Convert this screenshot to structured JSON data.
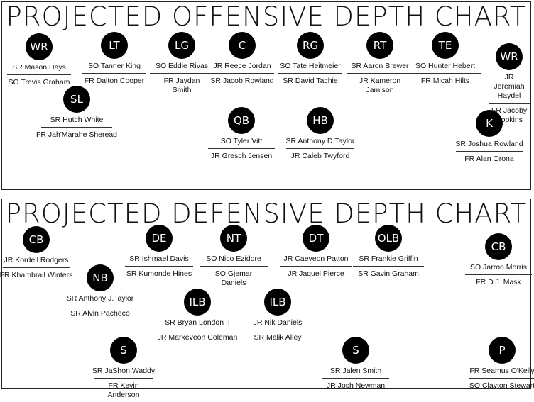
{
  "offense": {
    "title": "PROJECTED OFFENSIVE DEPTH CHART",
    "positions": [
      {
        "label": "WR",
        "first": "SR Mason Hays",
        "second": "SO Trevis Graham"
      },
      {
        "label": "LT",
        "first": "SO Tanner King",
        "second": "FR Dalton Cooper"
      },
      {
        "label": "LG",
        "first": "SO Eddie Rivas",
        "second": "FR Jaydan Smith"
      },
      {
        "label": "C",
        "first": "JR Reece Jordan",
        "second": "SR Jacob Rowland"
      },
      {
        "label": "RG",
        "first": "SO Tate Heitmeier",
        "second": "SR David Tachie"
      },
      {
        "label": "RT",
        "first": "SR Aaron Brewer",
        "second": "JR Kameron Jamison"
      },
      {
        "label": "TE",
        "first": "SO Hunter Hebert",
        "second": "FR Micah Hilts"
      },
      {
        "label": "WR",
        "first": "JR Jeremiah Haydel",
        "second": "FR Jacoby Hopkins"
      },
      {
        "label": "SL",
        "first": "SR Hutch White",
        "second": "FR Jah'Marahe Sheread"
      },
      {
        "label": "QB",
        "first": "SO Tyler Vitt",
        "second": "JR Gresch Jensen"
      },
      {
        "label": "HB",
        "first": "SR Anthony D.Taylor",
        "second": "JR Caleb Twyford"
      },
      {
        "label": "K",
        "first": "SR Joshua Rowland",
        "second": "FR Alan Orona"
      }
    ]
  },
  "defense": {
    "title": "PROJECTED DEFENSIVE DEPTH CHART",
    "positions": [
      {
        "label": "CB",
        "first": "JR Kordell Rodgers",
        "second": "FR Khambrail Winters"
      },
      {
        "label": "DE",
        "first": "SR Ishmael Davis",
        "second": "SR Kumonde Hines"
      },
      {
        "label": "NT",
        "first": "SO Nico Ezidore",
        "second": "SO Gjemar Daniels"
      },
      {
        "label": "DT",
        "first": "JR Caeveon Patton",
        "second": "JR Jaquel Pierce"
      },
      {
        "label": "OLB",
        "first": "SR Frankie Griffin",
        "second": "SR Gavin Graham"
      },
      {
        "label": "CB",
        "first": "SO Jarron Morris",
        "second": "FR D.J. Mask"
      },
      {
        "label": "NB",
        "first": "SR Anthony J.Taylor",
        "second": "SR Alvin Pacheco"
      },
      {
        "label": "ILB",
        "first": "SR Bryan London II",
        "second": "JR Markeveon Coleman"
      },
      {
        "label": "ILB",
        "first": "JR Nik Daniels",
        "second": "SR Malik Alley"
      },
      {
        "label": "S",
        "first": "SR JaShon Waddy",
        "second": "FR Kevin Anderson"
      },
      {
        "label": "S",
        "first": "SR Jalen Smith",
        "second": "JR Josh Newman"
      },
      {
        "label": "P",
        "first": "FR Seamus O'Kelly",
        "second": "SO Clayton Stewart"
      }
    ]
  }
}
